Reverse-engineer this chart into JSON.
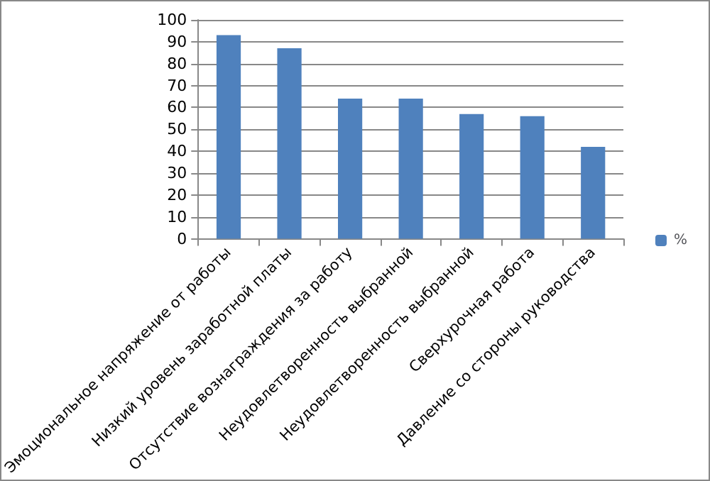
{
  "chart_data": {
    "type": "bar",
    "categories": [
      "Эмоциональное напряжение от работы",
      "Низкий уровень заработной платы",
      "Отсутствие вознаграждения за работу",
      "Неудовлетворенность выбранной",
      "Неудовлетворенность выбранной",
      "Сверхурочная работа",
      "Давление со стороны руководства"
    ],
    "series": [
      {
        "name": "%",
        "color": "#4f81bd",
        "values": [
          93,
          87,
          64,
          64,
          57,
          56,
          42
        ]
      }
    ],
    "ylim": [
      0,
      100
    ],
    "yticks": [
      0,
      10,
      20,
      30,
      40,
      50,
      60,
      70,
      80,
      90,
      100
    ],
    "grid": "y",
    "legend": "right"
  }
}
